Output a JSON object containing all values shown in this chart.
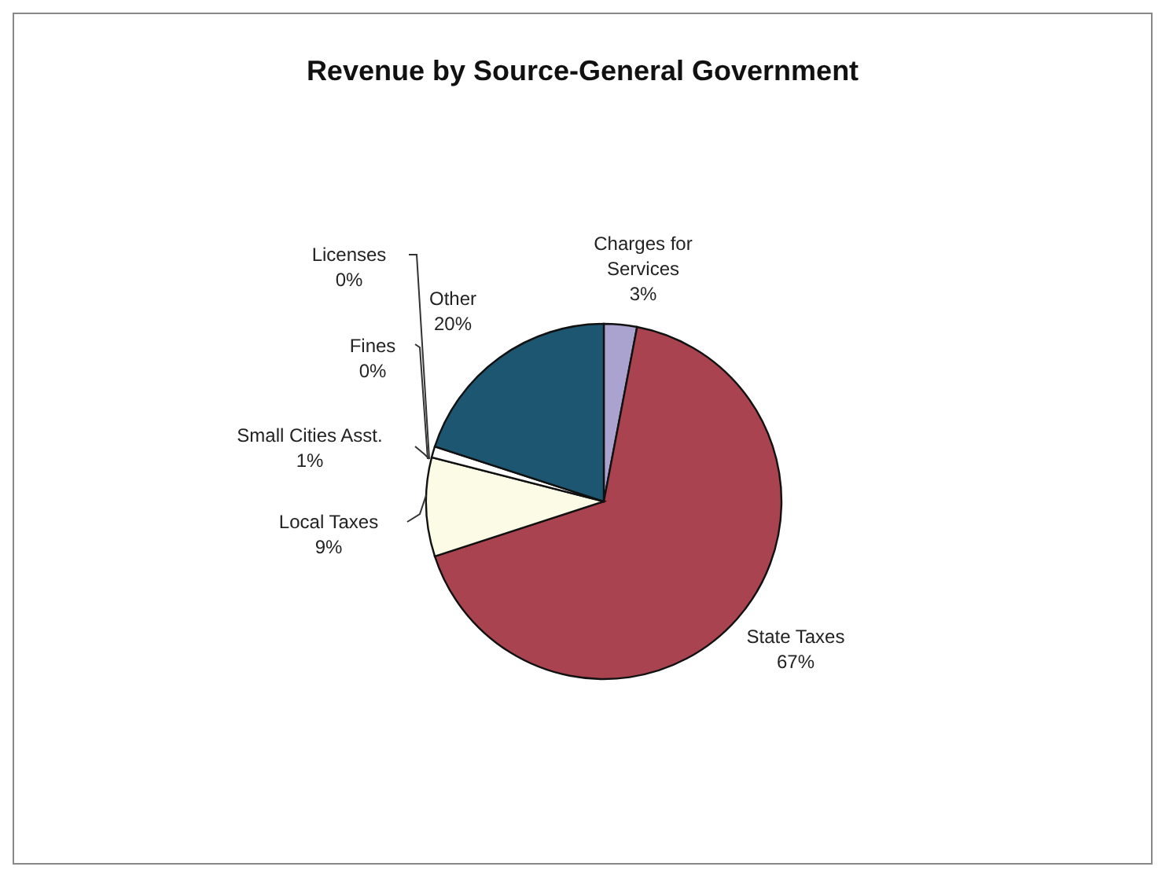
{
  "chart_data": {
    "type": "pie",
    "title": "Revenue by Source-General Government",
    "categories": [
      "Charges for Services",
      "State Taxes",
      "Local Taxes",
      "Small Cities Asst.",
      "Fines",
      "Licenses",
      "Other"
    ],
    "values": [
      3,
      67,
      9,
      1,
      0,
      0,
      20
    ],
    "value_labels": [
      "3%",
      "67%",
      "9%",
      "1%",
      "0%",
      "0%",
      "20%"
    ],
    "colors": [
      "#aba3cf",
      "#a8434f",
      "#fcfbe6",
      "#ffffff",
      "#ffffff",
      "#ffffff",
      "#1c5670"
    ]
  }
}
